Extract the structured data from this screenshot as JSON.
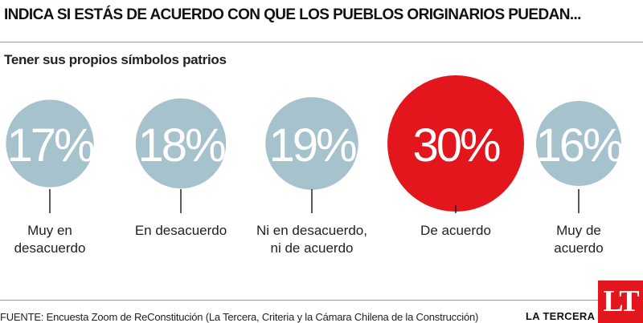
{
  "header": {
    "title": "INDICA SI ESTÁS DE ACUERDO CON QUE LOS PUEBLOS ORIGINARIOS PUEDAN...",
    "subtitle": "Tener sus propios símbolos patrios"
  },
  "colors": {
    "neutral_circle": "#a6c3cd",
    "highlight_circle": "#e2161c",
    "accent": "#e2161c"
  },
  "chart_data": {
    "type": "bubble-percent",
    "title": "INDICA SI ESTÁS DE ACUERDO CON QUE LOS PUEBLOS ORIGINARIOS PUEDAN...",
    "subtitle": "Tener sus propios símbolos patrios",
    "unit": "%",
    "categories": [
      [
        "Muy en",
        "desacuerdo"
      ],
      [
        "En desacuerdo"
      ],
      [
        "Ni en desacuerdo,",
        "ni de acuerdo"
      ],
      [
        "De acuerdo"
      ],
      [
        "Muy de",
        "acuerdo"
      ]
    ],
    "values": [
      17,
      18,
      19,
      30,
      16
    ],
    "value_labels": [
      "17%",
      "18%",
      "19%",
      "30%",
      "16%"
    ],
    "highlight_index": 3
  },
  "footer": {
    "source": "FUENTE: Encuesta Zoom de ReConstitución (La Tercera, Criteria y la Cámara Chilena de la Construcción)",
    "brand": "LA TERCERA",
    "logo_text": "LT"
  }
}
